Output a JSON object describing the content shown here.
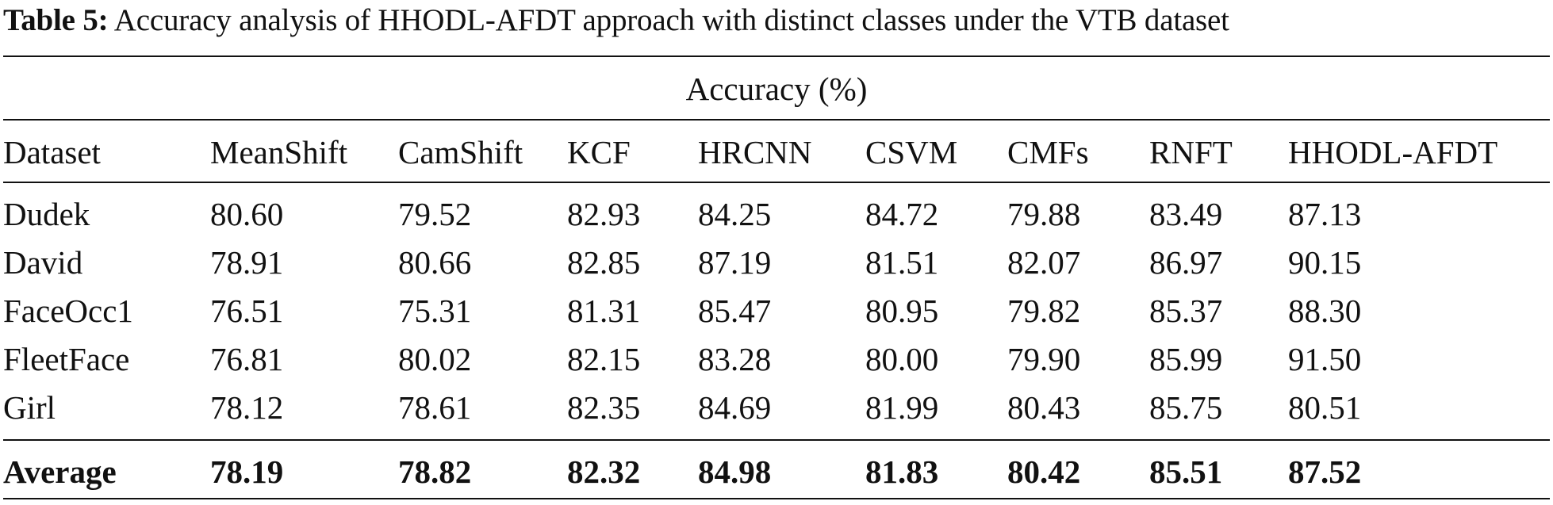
{
  "caption": {
    "label": "Table 5:",
    "text": " Accuracy analysis of HHODL-AFDT approach with distinct classes under the VTB dataset"
  },
  "table": {
    "group_header": "Accuracy (%)",
    "columns": [
      "Dataset",
      "MeanShift",
      "CamShift",
      "KCF",
      "HRCNN",
      "CSVM",
      "CMFs",
      "RNFT",
      "HHODL-AFDT"
    ],
    "rows": [
      [
        "Dudek",
        "80.60",
        "79.52",
        "82.93",
        "84.25",
        "84.72",
        "79.88",
        "83.49",
        "87.13"
      ],
      [
        "David",
        "78.91",
        "80.66",
        "82.85",
        "87.19",
        "81.51",
        "82.07",
        "86.97",
        "90.15"
      ],
      [
        "FaceOcc1",
        "76.51",
        "75.31",
        "81.31",
        "85.47",
        "80.95",
        "79.82",
        "85.37",
        "88.30"
      ],
      [
        "FleetFace",
        "76.81",
        "80.02",
        "82.15",
        "83.28",
        "80.00",
        "79.90",
        "85.99",
        "91.50"
      ],
      [
        "Girl",
        "78.12",
        "78.61",
        "82.35",
        "84.69",
        "81.99",
        "80.43",
        "85.75",
        "80.51"
      ]
    ],
    "average": [
      "Average",
      "78.19",
      "78.82",
      "82.32",
      "84.98",
      "81.83",
      "80.42",
      "85.51",
      "87.52"
    ]
  }
}
